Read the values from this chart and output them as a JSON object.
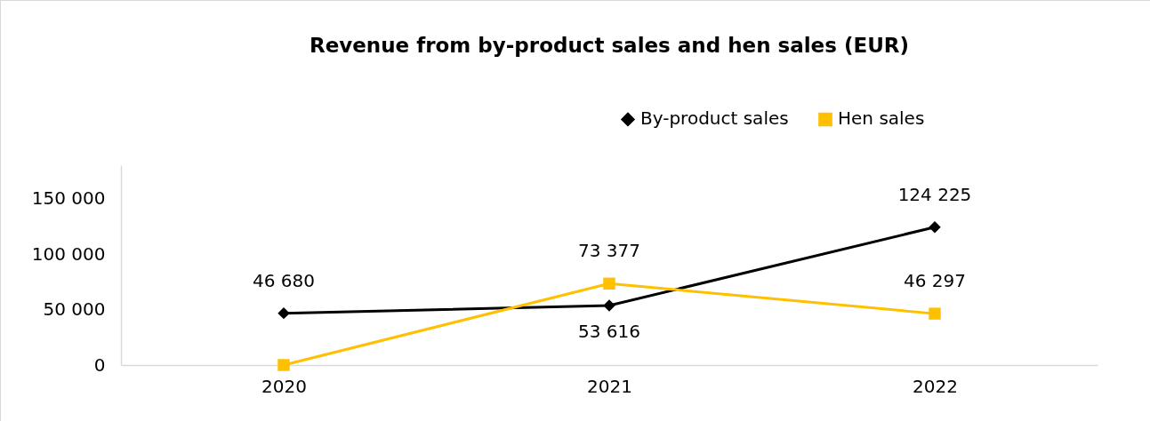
{
  "chart_data": {
    "type": "line",
    "title": "Revenue from by-product sales and hen sales (EUR)",
    "categories": [
      "2020",
      "2021",
      "2022"
    ],
    "series": [
      {
        "name": "By-product sales",
        "color": "#000000",
        "marker": "diamond",
        "values": [
          46680,
          53616,
          124225
        ],
        "value_labels": [
          "46 680",
          "53 616",
          "124 225"
        ]
      },
      {
        "name": "Hen sales",
        "color": "#ffc000",
        "marker": "square",
        "values": [
          0,
          73377,
          46297
        ],
        "value_labels": [
          null,
          "73 377",
          "46 297"
        ]
      }
    ],
    "ylim": [
      0,
      180000
    ],
    "yticks": [
      0,
      {
        "value": 50000,
        "label": "50 000"
      },
      {
        "value": 100000,
        "label": "100 000"
      },
      {
        "value": 150000,
        "label": "150 000"
      }
    ],
    "grid": false,
    "legend": "top right",
    "line_style": "solid"
  }
}
